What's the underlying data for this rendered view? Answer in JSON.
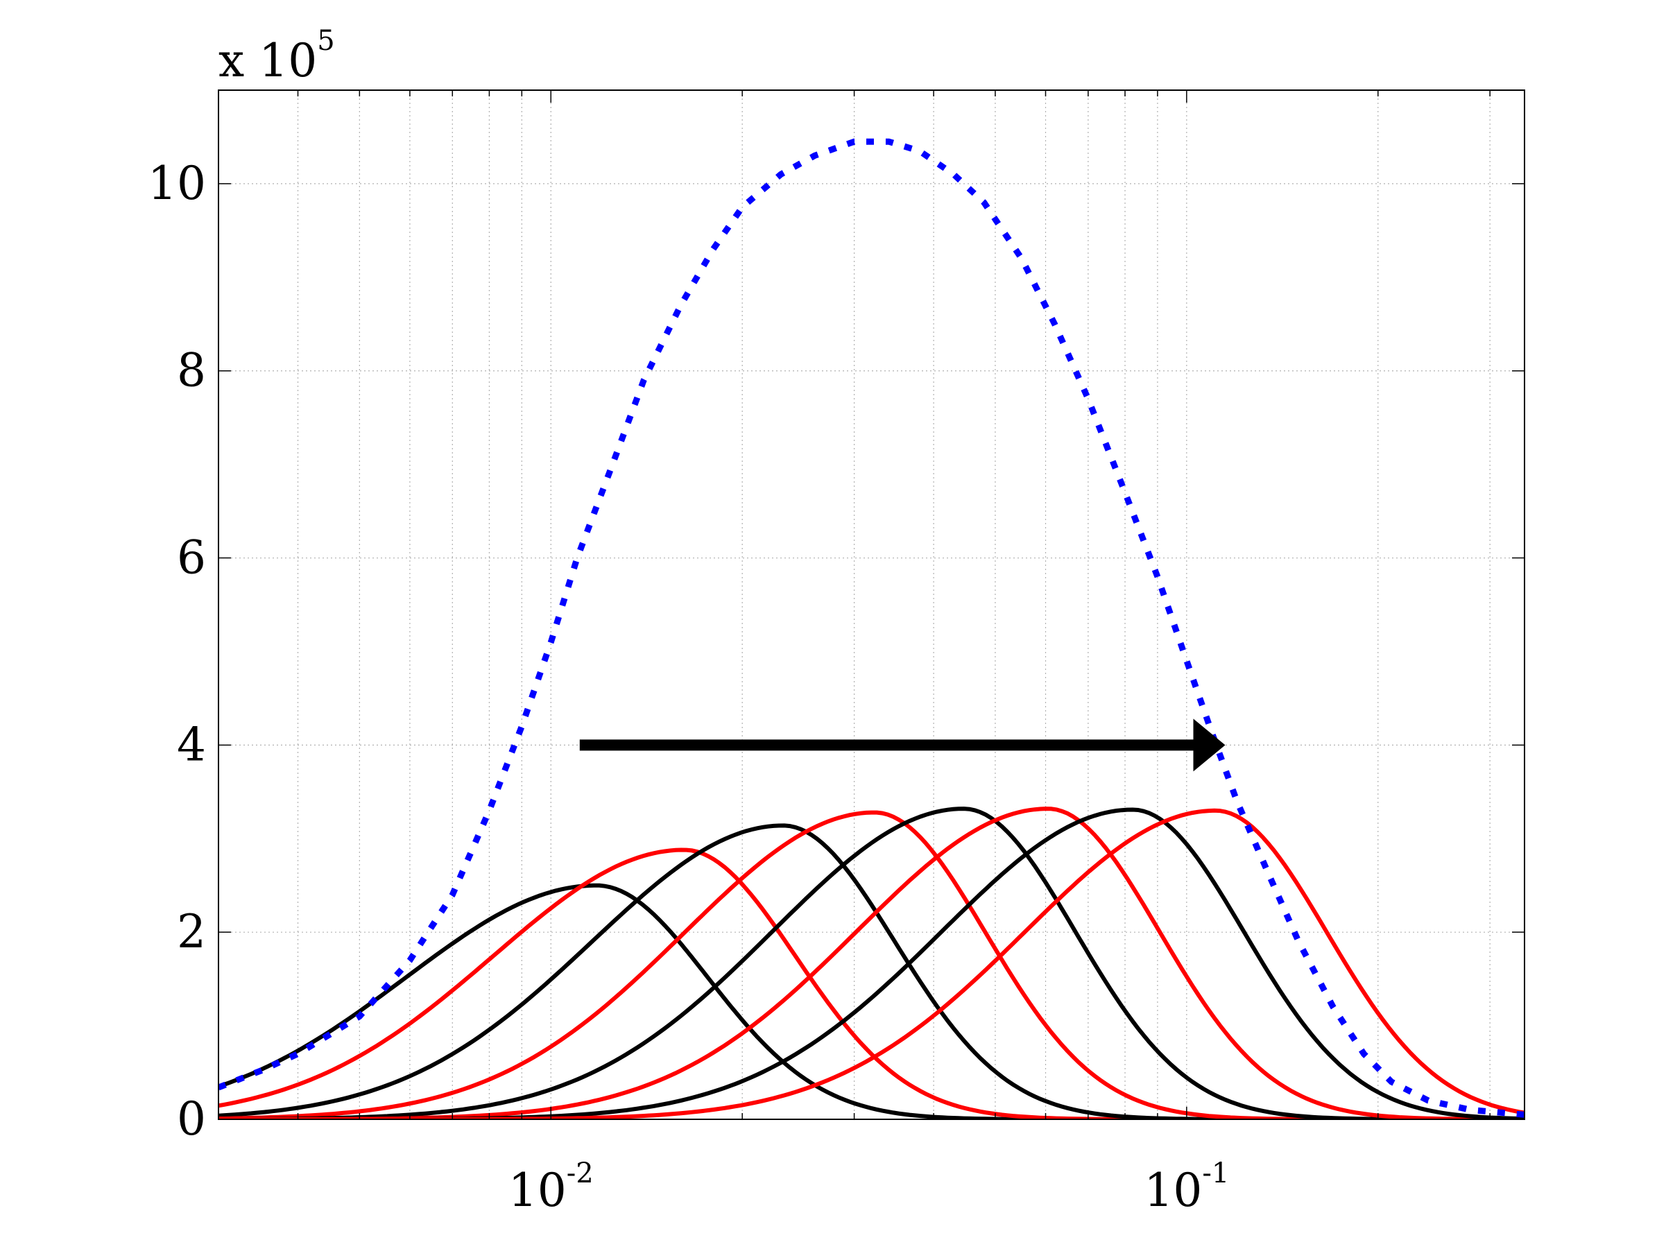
{
  "chart_data": {
    "type": "line",
    "title": "",
    "xlabel": "",
    "ylabel": "",
    "x_scale": "log",
    "xlim": [
      0.003,
      0.34
    ],
    "ylim": [
      0,
      11
    ],
    "y_multiplier_label": "x 10",
    "y_multiplier_exponent": "5",
    "grid": true,
    "legend": "none",
    "x_ticks": [
      {
        "value": 0.01,
        "base": "10",
        "exponent": "-2"
      },
      {
        "value": 0.1,
        "base": "10",
        "exponent": "-1"
      }
    ],
    "y_ticks": [
      {
        "value": 0,
        "label": "0"
      },
      {
        "value": 2,
        "label": "2"
      },
      {
        "value": 4,
        "label": "4"
      },
      {
        "value": 6,
        "label": "6"
      },
      {
        "value": 8,
        "label": "8"
      },
      {
        "value": 10,
        "label": "10"
      }
    ],
    "envelope": {
      "color": "#0000ff",
      "style": "dotted",
      "points": [
        [
          0.003,
          0.34
        ],
        [
          0.0035,
          0.52
        ],
        [
          0.004,
          0.7
        ],
        [
          0.005,
          1.1
        ],
        [
          0.006,
          1.7
        ],
        [
          0.007,
          2.4
        ],
        [
          0.008,
          3.3
        ],
        [
          0.009,
          4.2
        ],
        [
          0.01,
          5.1
        ],
        [
          0.011,
          6.0
        ],
        [
          0.0125,
          7.0
        ],
        [
          0.014,
          7.9
        ],
        [
          0.016,
          8.7
        ],
        [
          0.018,
          9.3
        ],
        [
          0.02,
          9.75
        ],
        [
          0.023,
          10.1
        ],
        [
          0.026,
          10.3
        ],
        [
          0.03,
          10.45
        ],
        [
          0.034,
          10.45
        ],
        [
          0.038,
          10.35
        ],
        [
          0.043,
          10.1
        ],
        [
          0.048,
          9.8
        ],
        [
          0.055,
          9.2
        ],
        [
          0.062,
          8.5
        ],
        [
          0.07,
          7.7
        ],
        [
          0.08,
          6.7
        ],
        [
          0.09,
          5.8
        ],
        [
          0.1,
          4.9
        ],
        [
          0.11,
          4.1
        ],
        [
          0.12,
          3.4
        ],
        [
          0.135,
          2.6
        ],
        [
          0.15,
          1.9
        ],
        [
          0.17,
          1.2
        ],
        [
          0.19,
          0.7
        ],
        [
          0.21,
          0.4
        ],
        [
          0.24,
          0.2
        ],
        [
          0.28,
          0.1
        ],
        [
          0.34,
          0.05
        ]
      ]
    },
    "series": [
      {
        "color": "#000000",
        "peak_x": 0.0118,
        "peak_y": 2.5
      },
      {
        "color": "#ff0000",
        "peak_x": 0.0162,
        "peak_y": 2.88
      },
      {
        "color": "#000000",
        "peak_x": 0.0232,
        "peak_y": 3.14
      },
      {
        "color": "#ff0000",
        "peak_x": 0.0323,
        "peak_y": 3.28
      },
      {
        "color": "#000000",
        "peak_x": 0.0446,
        "peak_y": 3.32
      },
      {
        "color": "#ff0000",
        "peak_x": 0.0605,
        "peak_y": 3.32
      },
      {
        "color": "#000000",
        "peak_x": 0.0822,
        "peak_y": 3.31
      },
      {
        "color": "#ff0000",
        "peak_x": 0.111,
        "peak_y": 3.3
      }
    ],
    "annotation": {
      "type": "arrow",
      "color": "#000000",
      "from": [
        0.0111,
        4.0
      ],
      "to": [
        0.115,
        4.0
      ]
    }
  }
}
